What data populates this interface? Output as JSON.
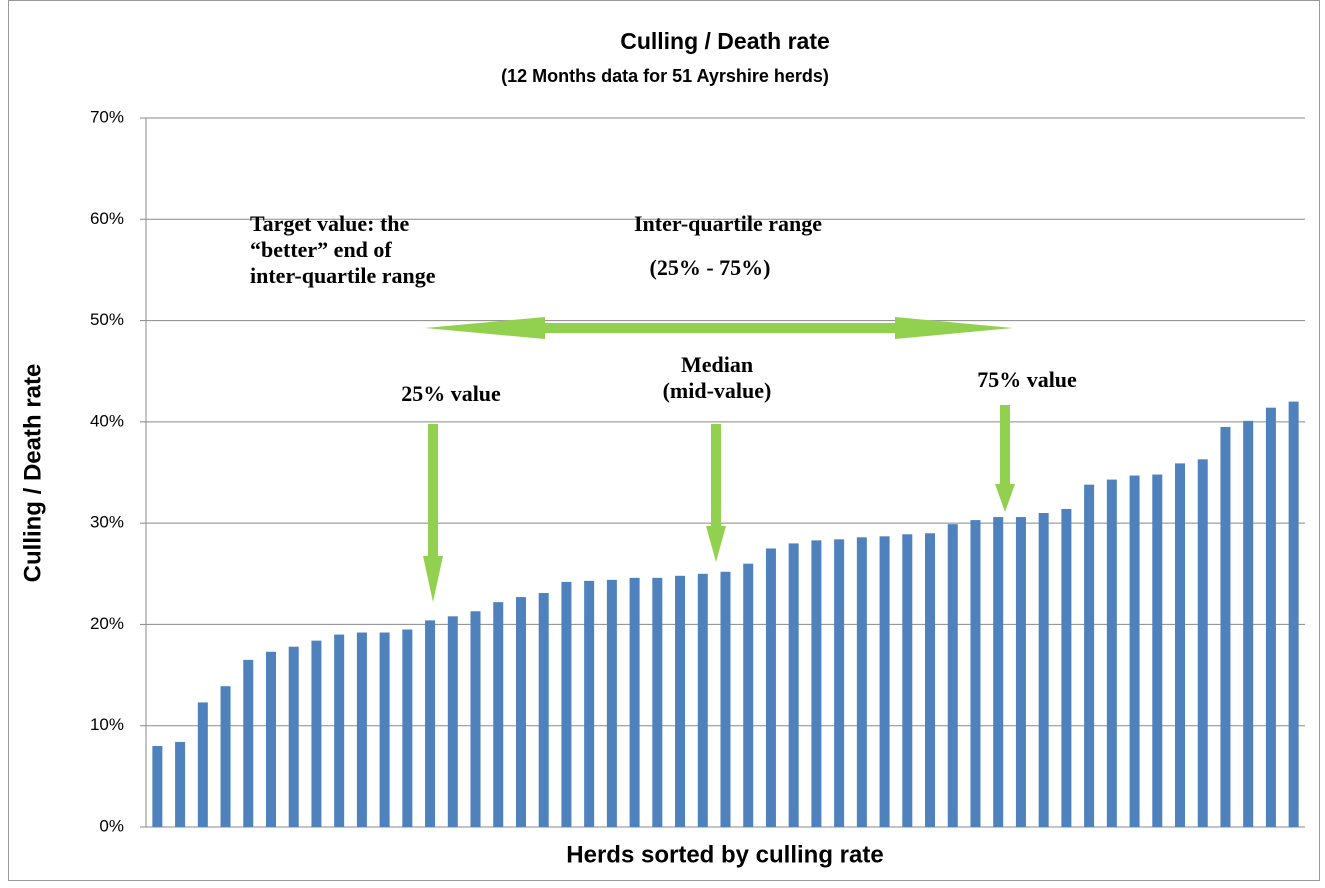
{
  "chart_data": {
    "type": "bar",
    "title": "Culling / Death rate",
    "subtitle": "(12 Months data for 51 Ayrshire herds)",
    "x_label": "Herds sorted by culling rate",
    "y_label": "Culling / Death rate",
    "color": "#4f81bd",
    "values": [
      8.0,
      8.4,
      12.3,
      13.9,
      16.5,
      17.3,
      17.8,
      18.4,
      19.0,
      19.2,
      19.2,
      19.5,
      20.4,
      20.8,
      21.3,
      22.2,
      22.7,
      23.1,
      24.2,
      24.3,
      24.4,
      24.6,
      24.6,
      24.8,
      25.0,
      25.2,
      26.0,
      27.5,
      28.0,
      28.3,
      28.4,
      28.6,
      28.7,
      28.9,
      29.0,
      29.9,
      30.3,
      30.6,
      30.6,
      31.0,
      31.4,
      33.8,
      34.3,
      34.7,
      34.8,
      35.9,
      36.3,
      39.5,
      40.1,
      41.4,
      42.0
    ],
    "ylim": [
      0,
      70
    ],
    "yticks": [
      {
        "value": 0,
        "label": "0%"
      },
      {
        "value": 10,
        "label": "10%"
      },
      {
        "value": 20,
        "label": "20%"
      },
      {
        "value": 30,
        "label": "30%"
      },
      {
        "value": 40,
        "label": "40%"
      },
      {
        "value": 50,
        "label": "50%"
      },
      {
        "value": 60,
        "label": "60%"
      },
      {
        "value": 70,
        "label": "70%"
      }
    ],
    "grid": true,
    "annotations": [
      "Target value: the",
      "“better” end of",
      "inter-quartile range",
      "Inter-quartile range",
      "(25% - 75%)",
      "25% value",
      "Median",
      "(mid-value)",
      "75% value"
    ]
  }
}
